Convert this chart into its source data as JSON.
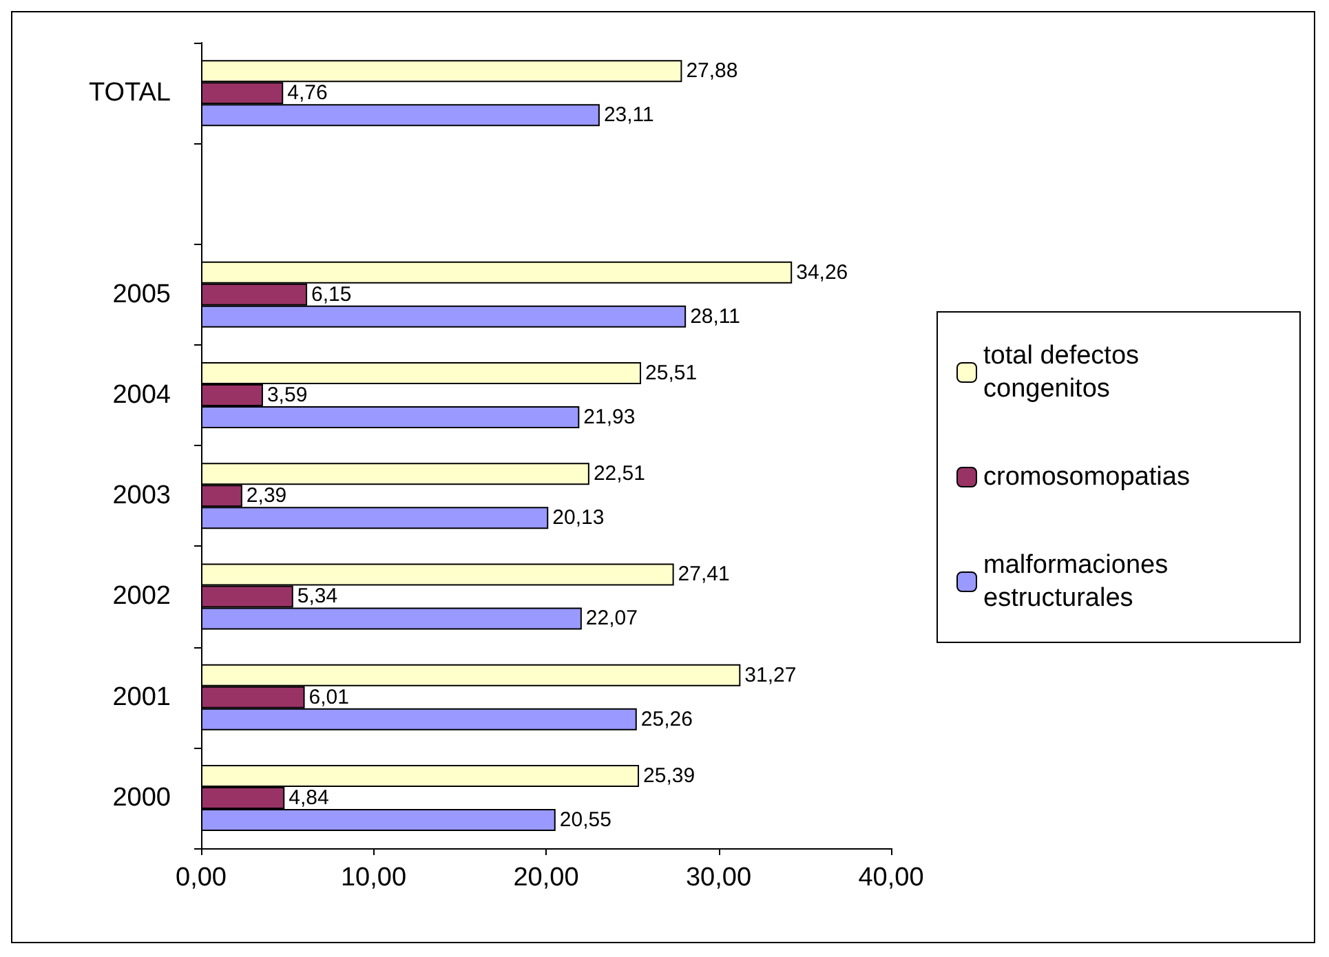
{
  "chart_data": {
    "type": "bar",
    "orientation": "horizontal",
    "categories": [
      "TOTAL",
      null,
      "2005",
      "2004",
      "2003",
      "2002",
      "2001",
      "2000"
    ],
    "series": [
      {
        "name": "total defectos congenitos",
        "color": "#ffffcc",
        "values": [
          27.88,
          null,
          34.26,
          25.51,
          22.51,
          27.41,
          31.27,
          25.39
        ],
        "value_labels": [
          "27,88",
          null,
          "34,26",
          "25,51",
          "22,51",
          "27,41",
          "31,27",
          "25,39"
        ]
      },
      {
        "name": "cromosomopatias",
        "color": "#993366",
        "values": [
          4.76,
          null,
          6.15,
          3.59,
          2.39,
          5.34,
          6.01,
          4.84
        ],
        "value_labels": [
          "4,76",
          null,
          "6,15",
          "3,59",
          "2,39",
          "5,34",
          "6,01",
          "4,84"
        ]
      },
      {
        "name": "malformaciones estructurales",
        "color": "#9999ff",
        "values": [
          23.11,
          null,
          28.11,
          21.93,
          20.13,
          22.07,
          25.26,
          20.55
        ],
        "value_labels": [
          "23,11",
          null,
          "28,11",
          "21,93",
          "20,13",
          "22,07",
          "25,26",
          "20,55"
        ]
      }
    ],
    "xlim": [
      0,
      40
    ],
    "xticks": [
      {
        "value": 0,
        "label": "0,00"
      },
      {
        "value": 10,
        "label": "10,00"
      },
      {
        "value": 20,
        "label": "20,00"
      },
      {
        "value": 30,
        "label": "30,00"
      },
      {
        "value": 40,
        "label": "40,00"
      }
    ],
    "grid": false,
    "legend": "right"
  }
}
